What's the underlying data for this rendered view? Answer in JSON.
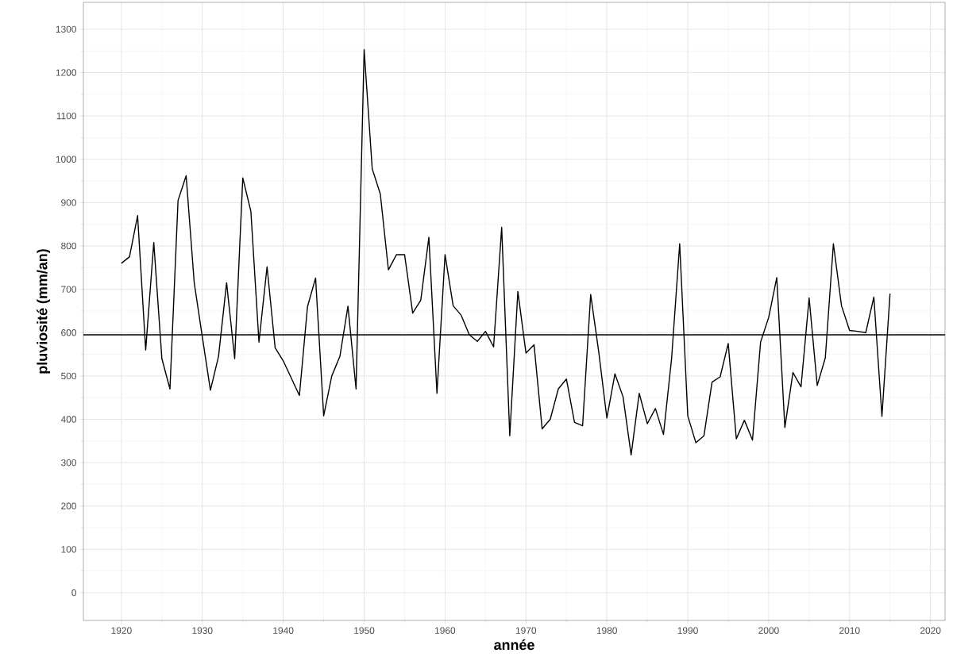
{
  "chart_data": {
    "type": "line",
    "xlabel": "année",
    "ylabel": "pluviosité (mm/an)",
    "x": [
      1920,
      1921,
      1922,
      1923,
      1924,
      1925,
      1926,
      1927,
      1928,
      1929,
      1930,
      1931,
      1932,
      1933,
      1934,
      1935,
      1936,
      1937,
      1938,
      1939,
      1940,
      1941,
      1942,
      1943,
      1944,
      1945,
      1946,
      1947,
      1948,
      1949,
      1950,
      1951,
      1952,
      1953,
      1954,
      1955,
      1956,
      1957,
      1958,
      1959,
      1960,
      1961,
      1962,
      1963,
      1964,
      1965,
      1966,
      1967,
      1968,
      1969,
      1970,
      1971,
      1972,
      1973,
      1974,
      1975,
      1976,
      1977,
      1978,
      1979,
      1980,
      1981,
      1982,
      1983,
      1984,
      1985,
      1986,
      1987,
      1988,
      1989,
      1990,
      1991,
      1992,
      1993,
      1994,
      1995,
      1996,
      1997,
      1998,
      1999,
      2000,
      2001,
      2002,
      2003,
      2004,
      2005,
      2006,
      2007,
      2008,
      2009,
      2010,
      2011,
      2012,
      2013,
      2014,
      2015
    ],
    "values": [
      760,
      775,
      870,
      560,
      808,
      540,
      470,
      905,
      962,
      715,
      590,
      467,
      545,
      715,
      540,
      957,
      880,
      578,
      752,
      565,
      535,
      495,
      455,
      660,
      726,
      408,
      500,
      545,
      661,
      470,
      1253,
      978,
      920,
      745,
      780,
      780,
      645,
      675,
      820,
      460,
      780,
      662,
      640,
      595,
      580,
      603,
      567,
      843,
      362,
      695,
      553,
      572,
      378,
      400,
      470,
      493,
      393,
      385,
      688,
      555,
      403,
      505,
      452,
      318,
      460,
      390,
      425,
      365,
      540,
      805,
      408,
      346,
      362,
      486,
      498,
      575,
      355,
      398,
      352,
      578,
      635,
      727,
      381,
      508,
      475,
      680,
      478,
      542,
      805,
      662,
      605,
      603,
      600,
      682,
      407,
      690
    ],
    "color": "#000000",
    "xlim": [
      1915.3,
      2021.8
    ],
    "ylim": [
      -64,
      1362
    ],
    "xticks": [
      1920,
      1930,
      1940,
      1950,
      1960,
      1970,
      1980,
      1990,
      2000,
      2010,
      2020
    ],
    "yticks": [
      0,
      100,
      200,
      300,
      400,
      500,
      600,
      700,
      800,
      900,
      1000,
      1100,
      1200,
      1300
    ],
    "grid": true,
    "marker": "none",
    "line_style": "solid",
    "ref_lines": [
      {
        "axis": "y",
        "value": 595
      }
    ]
  }
}
